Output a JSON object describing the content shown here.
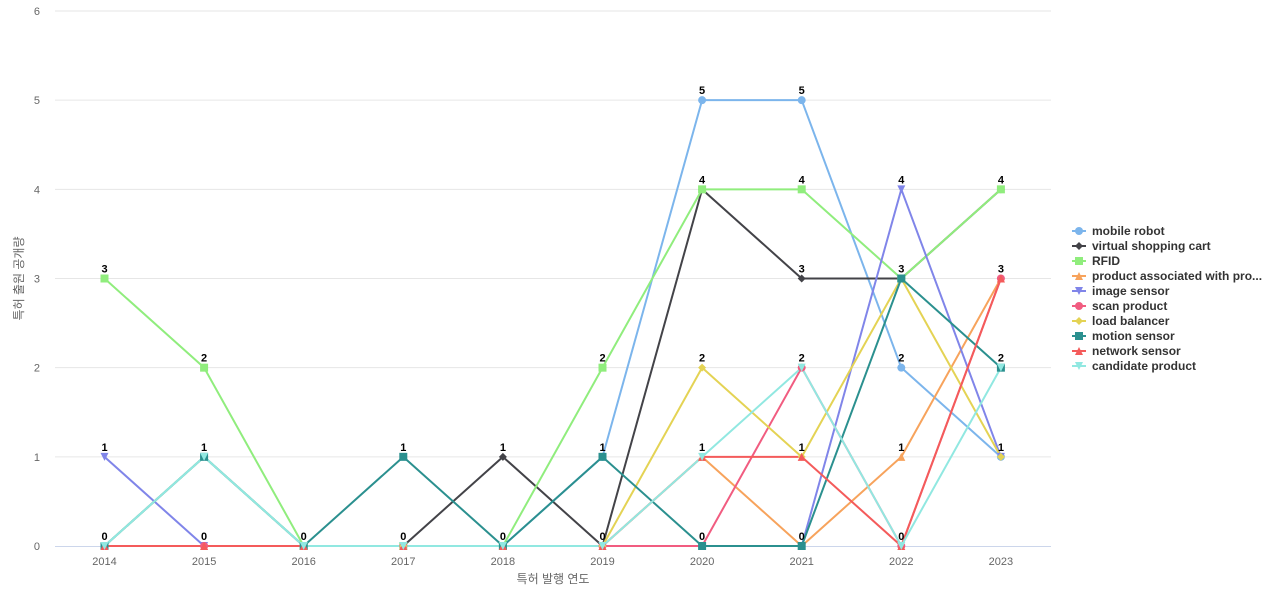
{
  "chart_data": {
    "type": "line",
    "title": "",
    "xlabel": "특허 발행 연도",
    "ylabel": "특허 출원 공개량",
    "x": [
      "2014",
      "2015",
      "2016",
      "2017",
      "2018",
      "2019",
      "2020",
      "2021",
      "2022",
      "2023"
    ],
    "ylim": [
      0,
      6
    ],
    "yticks": [
      "0",
      "1",
      "2",
      "3",
      "4",
      "5",
      "6"
    ],
    "grid": true,
    "legend_position": "right",
    "data_labels": [
      "0",
      "0",
      "0",
      "0",
      "0",
      "0",
      "0",
      "0",
      "0",
      "0"
    ],
    "series": [
      {
        "name": "mobile robot",
        "color": "#7cb5ec",
        "marker": "circle",
        "values": [
          0,
          1,
          0,
          0,
          0,
          1,
          5,
          5,
          2,
          1
        ]
      },
      {
        "name": "virtual shopping cart",
        "color": "#434348",
        "marker": "diamond",
        "values": [
          0,
          0,
          0,
          0,
          1,
          0,
          4,
          3,
          3,
          4
        ]
      },
      {
        "name": "RFID",
        "color": "#90ed7d",
        "marker": "square",
        "values": [
          3,
          2,
          0,
          0,
          0,
          2,
          4,
          4,
          3,
          4
        ]
      },
      {
        "name": "product associated with pro...",
        "color": "#f7a35c",
        "marker": "triangle",
        "values": [
          0,
          0,
          0,
          0,
          0,
          0,
          1,
          0,
          1,
          3
        ]
      },
      {
        "name": "image sensor",
        "color": "#8085e9",
        "marker": "triangle-down",
        "values": [
          1,
          0,
          0,
          0,
          0,
          0,
          0,
          0,
          4,
          1
        ]
      },
      {
        "name": "scan product",
        "color": "#f15c80",
        "marker": "circle",
        "values": [
          0,
          0,
          0,
          0,
          0,
          0,
          0,
          2,
          0,
          3
        ]
      },
      {
        "name": "load balancer",
        "color": "#e4d354",
        "marker": "diamond",
        "values": [
          0,
          1,
          0,
          0,
          0,
          0,
          2,
          1,
          3,
          1
        ]
      },
      {
        "name": "motion sensor",
        "color": "#2b908f",
        "marker": "square",
        "values": [
          0,
          1,
          0,
          1,
          0,
          1,
          0,
          0,
          3,
          2
        ]
      },
      {
        "name": "network sensor",
        "color": "#f45b5b",
        "marker": "triangle",
        "values": [
          0,
          0,
          0,
          0,
          0,
          0,
          1,
          1,
          0,
          3
        ]
      },
      {
        "name": "candidate product",
        "color": "#91e8e1",
        "marker": "triangle-down",
        "values": [
          0,
          1,
          0,
          0,
          0,
          0,
          1,
          2,
          0,
          2
        ]
      }
    ],
    "point_labels": [
      {
        "x": "2014",
        "text": "3"
      },
      {
        "x": "2014",
        "text": "1"
      },
      {
        "x": "2014",
        "text": "0"
      },
      {
        "x": "2015",
        "text": "2"
      },
      {
        "x": "2015",
        "text": "1"
      },
      {
        "x": "2015",
        "text": "0"
      },
      {
        "x": "2016",
        "text": "0"
      },
      {
        "x": "2017",
        "text": "1"
      },
      {
        "x": "2017",
        "text": "0"
      },
      {
        "x": "2018",
        "text": "1"
      },
      {
        "x": "2018",
        "text": "0"
      },
      {
        "x": "2019",
        "text": "2"
      },
      {
        "x": "2019",
        "text": "1"
      },
      {
        "x": "2019",
        "text": "0"
      },
      {
        "x": "2020",
        "text": "5"
      },
      {
        "x": "2020",
        "text": "4"
      },
      {
        "x": "2020",
        "text": "2"
      },
      {
        "x": "2020",
        "text": "1"
      },
      {
        "x": "2020",
        "text": "0"
      },
      {
        "x": "2021",
        "text": "5"
      },
      {
        "x": "2021",
        "text": "4"
      },
      {
        "x": "2021",
        "text": "3"
      },
      {
        "x": "2021",
        "text": "2"
      },
      {
        "x": "2021",
        "text": "1"
      },
      {
        "x": "2021",
        "text": "0"
      },
      {
        "x": "2022",
        "text": "4"
      },
      {
        "x": "2022",
        "text": "3"
      },
      {
        "x": "2022",
        "text": "2"
      },
      {
        "x": "2022",
        "text": "1"
      },
      {
        "x": "2022",
        "text": "0"
      },
      {
        "x": "2023",
        "text": "4"
      },
      {
        "x": "2023",
        "text": "3"
      },
      {
        "x": "2023",
        "text": "2"
      },
      {
        "x": "2023",
        "text": "1"
      }
    ]
  }
}
